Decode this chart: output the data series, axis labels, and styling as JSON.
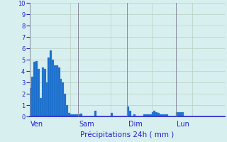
{
  "xlabel": "Précipitations 24h ( mm )",
  "ylim": [
    0,
    10
  ],
  "yticks": [
    0,
    1,
    2,
    3,
    4,
    5,
    6,
    7,
    8,
    9,
    10
  ],
  "background_color": "#d8eff0",
  "plot_bg_color": "#d8eff0",
  "bar_color": "#1a6fcc",
  "bar_edge_color": "#5599dd",
  "grid_color": "#b8cfc0",
  "day_line_color": "#888899",
  "axis_color": "#2222cc",
  "tick_label_color": "#2222cc",
  "day_labels": [
    "Ven",
    "Sam",
    "Dim",
    "Lun"
  ],
  "day_positions": [
    0,
    24,
    48,
    72
  ],
  "n_bars": 96,
  "values": [
    2.5,
    3.5,
    4.8,
    4.9,
    4.2,
    1.6,
    4.3,
    4.2,
    3.0,
    5.2,
    5.8,
    5.0,
    4.5,
    4.5,
    4.3,
    3.3,
    3.0,
    2.0,
    1.0,
    0.3,
    0.2,
    0.2,
    0.2,
    0.2,
    0.2,
    0.25,
    0.0,
    0.0,
    0.0,
    0.0,
    0.0,
    0.0,
    0.5,
    0.0,
    0.0,
    0.0,
    0.0,
    0.0,
    0.0,
    0.0,
    0.3,
    0.0,
    0.0,
    0.0,
    0.0,
    0.0,
    0.0,
    0.0,
    0.9,
    0.5,
    0.0,
    0.2,
    0.0,
    0.0,
    0.0,
    0.0,
    0.2,
    0.2,
    0.2,
    0.2,
    0.4,
    0.5,
    0.35,
    0.3,
    0.2,
    0.2,
    0.2,
    0.2,
    0.0,
    0.0,
    0.0,
    0.0,
    0.4,
    0.35,
    0.35,
    0.4,
    0.0,
    0.0,
    0.0,
    0.0,
    0.0,
    0.0,
    0.0,
    0.0,
    0.0,
    0.0,
    0.0,
    0.0,
    0.0,
    0.0,
    0.0,
    0.0,
    0.0,
    0.0,
    0.0,
    0.0
  ]
}
